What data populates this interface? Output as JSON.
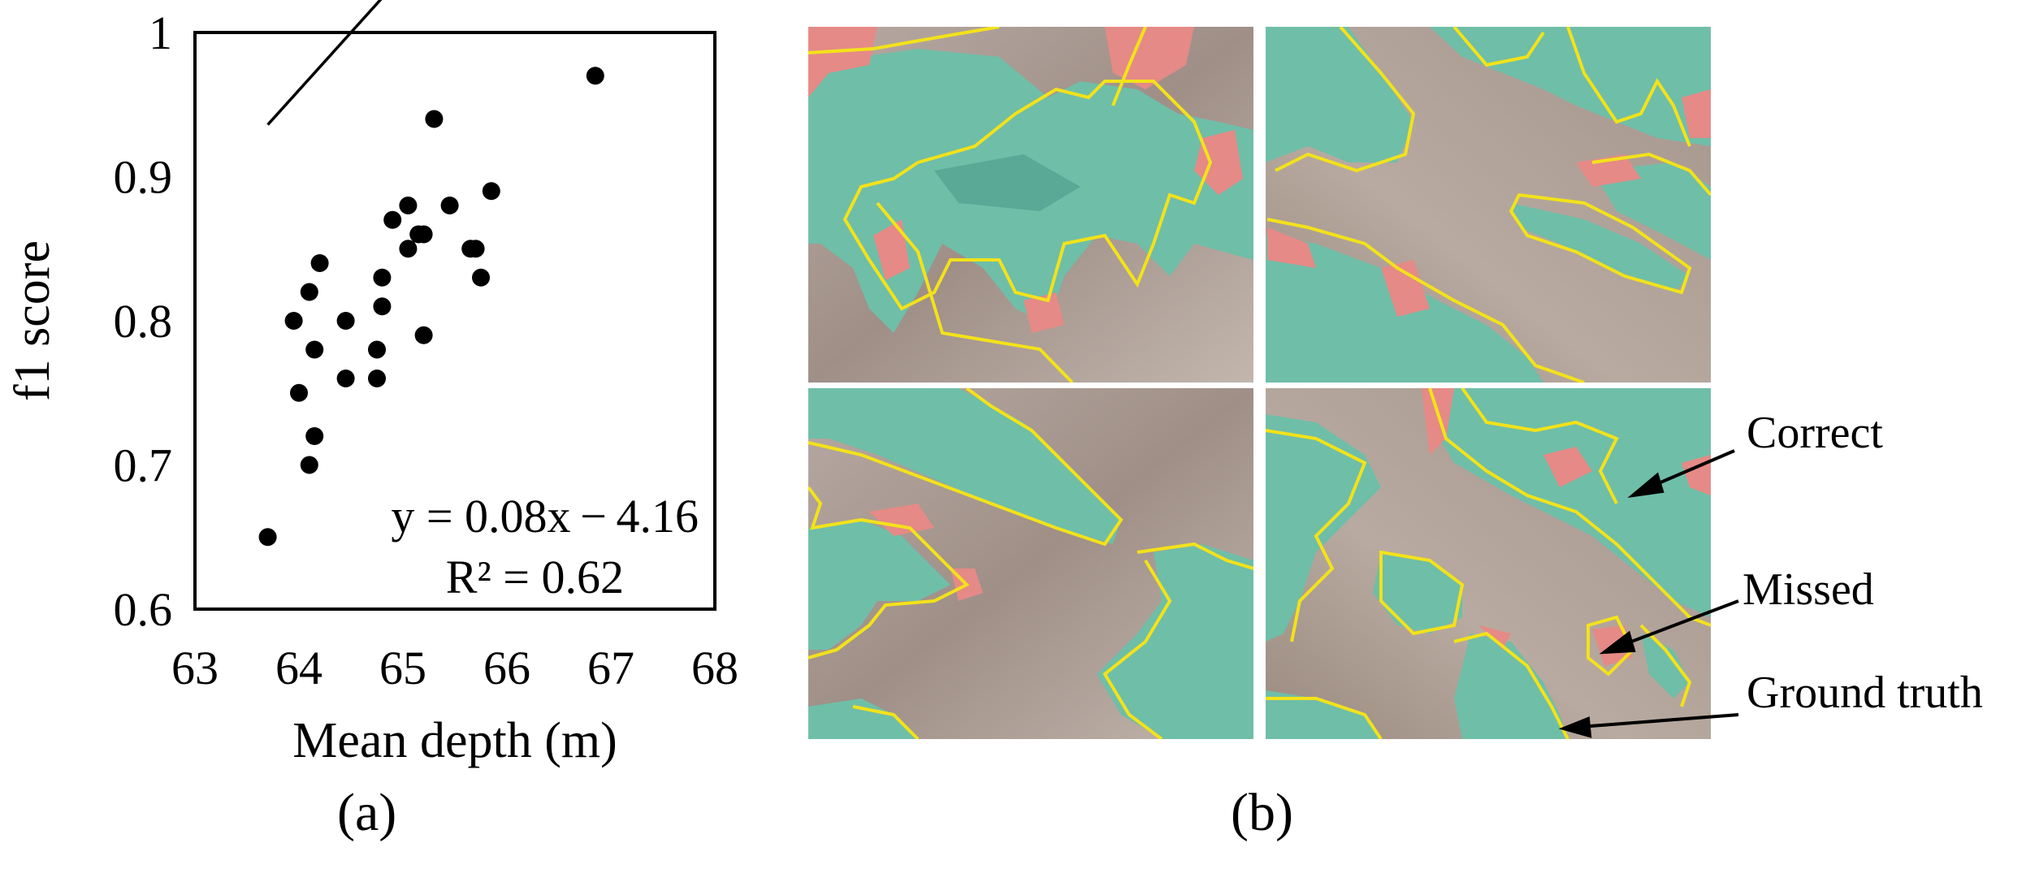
{
  "chart_data": {
    "type": "scatter",
    "xlabel": "Mean depth (m)",
    "ylabel": "f1 score",
    "xlim": [
      63,
      68
    ],
    "ylim": [
      0.6,
      1.0
    ],
    "xticks": [
      "63",
      "64",
      "65",
      "66",
      "67",
      "68"
    ],
    "yticks": [
      "0.6",
      "0.7",
      "0.8",
      "0.9",
      "1"
    ],
    "grid": false,
    "points": [
      [
        63.7,
        0.65
      ],
      [
        63.95,
        0.8
      ],
      [
        64.0,
        0.75
      ],
      [
        64.1,
        0.82
      ],
      [
        64.1,
        0.7
      ],
      [
        64.15,
        0.78
      ],
      [
        64.15,
        0.72
      ],
      [
        64.2,
        0.84
      ],
      [
        64.45,
        0.8
      ],
      [
        64.45,
        0.76
      ],
      [
        64.75,
        0.78
      ],
      [
        64.75,
        0.76
      ],
      [
        64.8,
        0.81
      ],
      [
        64.8,
        0.83
      ],
      [
        64.9,
        0.87
      ],
      [
        65.05,
        0.88
      ],
      [
        65.05,
        0.85
      ],
      [
        65.15,
        0.86
      ],
      [
        65.2,
        0.86
      ],
      [
        65.2,
        0.79
      ],
      [
        65.3,
        0.94
      ],
      [
        65.45,
        0.88
      ],
      [
        65.65,
        0.85
      ],
      [
        65.7,
        0.85
      ],
      [
        65.75,
        0.83
      ],
      [
        65.85,
        0.89
      ],
      [
        66.85,
        0.97
      ]
    ],
    "trendline": {
      "slope": 0.08,
      "intercept": -4.16,
      "x_range": [
        63.7,
        66.85
      ]
    },
    "annotations": [
      "y = 0.08x − 4.16",
      "R² = 0.62"
    ]
  },
  "panel_labels": {
    "a": "(a)",
    "b": "(b)"
  },
  "image_annotations": {
    "correct": "Correct",
    "missed": "Missed",
    "ground_truth": "Ground truth"
  },
  "colors": {
    "correct": "#6fbea8",
    "missed": "#e58a86",
    "ground_truth": "#f3e21a",
    "background": "#a89a8e"
  }
}
